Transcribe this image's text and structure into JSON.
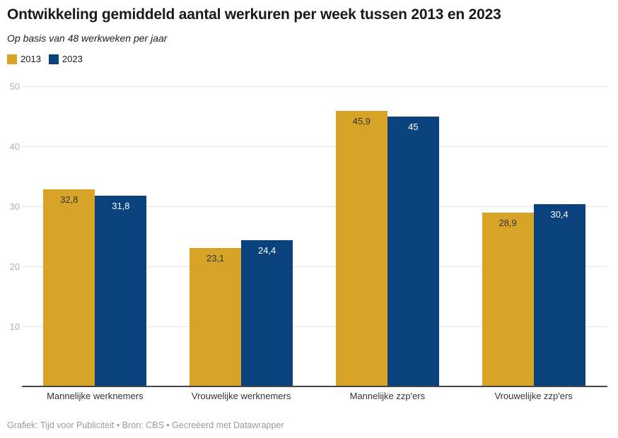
{
  "header": {
    "title": "Ontwikkeling gemiddeld aantal werkuren per week tussen 2013 en 2023",
    "subtitle": "Op basis van 48 werkweken per jaar"
  },
  "legend": {
    "position": "top-left",
    "items": [
      {
        "label": "2013",
        "color": "#D8A427"
      },
      {
        "label": "2023",
        "color": "#0A427D"
      }
    ]
  },
  "chart_data": {
    "type": "bar",
    "title": "Ontwikkeling gemiddeld aantal werkuren per week tussen 2013 en 2023",
    "subtitle": "Op basis van 48 werkweken per jaar",
    "categories": [
      "Mannelijke werknemers",
      "Vrouwelijke werknemers",
      "Mannelijke zzp'ers",
      "Vrouwelijke zzp'ers"
    ],
    "series": [
      {
        "name": "2013",
        "color": "#D8A427",
        "label_color": "#333333",
        "values": [
          32.8,
          23.1,
          45.9,
          28.9
        ],
        "value_labels": [
          "32,8",
          "23,1",
          "45,9",
          "28,9"
        ]
      },
      {
        "name": "2023",
        "color": "#0A427D",
        "label_color": "#ffffff",
        "values": [
          31.8,
          24.4,
          45,
          30.4
        ],
        "value_labels": [
          "31,8",
          "24,4",
          "45",
          "30,4"
        ]
      }
    ],
    "xlabel": "",
    "ylabel": "",
    "ylim": [
      0,
      50
    ],
    "yticks": [
      10,
      20,
      30,
      40,
      50
    ],
    "grid": true,
    "value_labels_inside_bars": true,
    "legend_position": "top-left"
  },
  "colors": {
    "background": "#ffffff",
    "grid": "#e3e3e3",
    "axis": "#454545",
    "tick_label": "#b0b0b0",
    "category_label": "#333333",
    "footer_text": "#9b9b9b"
  },
  "footer": {
    "credit": "Grafiek: Tijd voor Publiciteit • Bron: CBS • Gecreëerd met Datawrapper"
  }
}
